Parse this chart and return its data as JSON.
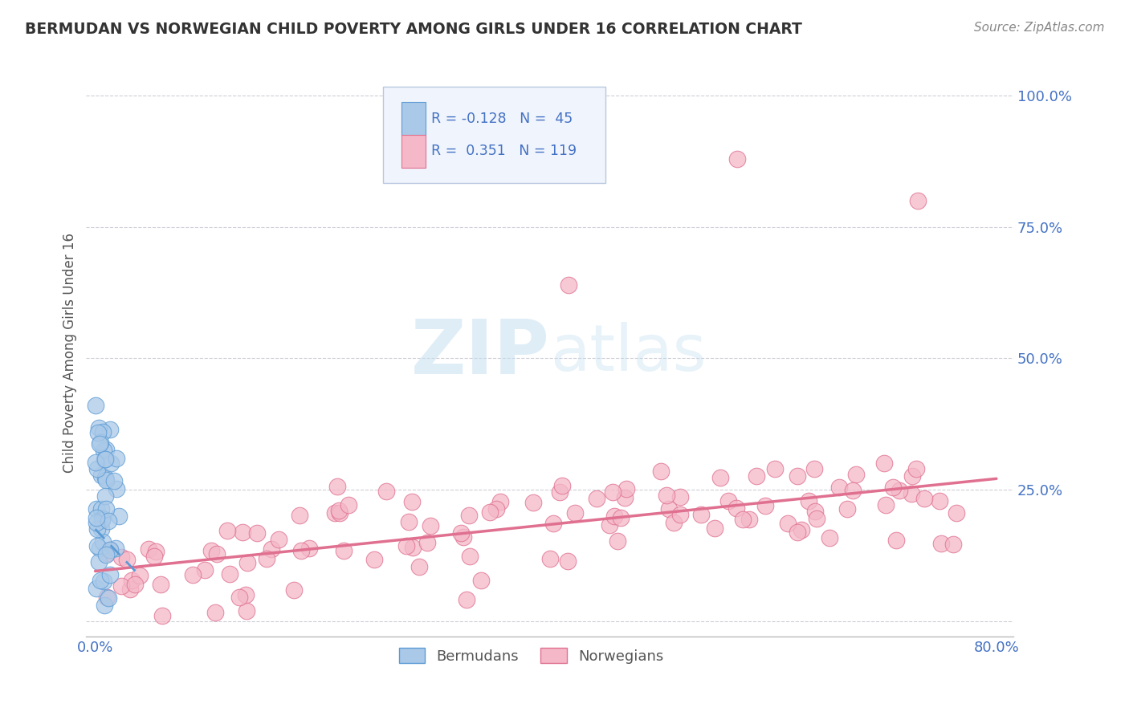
{
  "title": "BERMUDAN VS NORWEGIAN CHILD POVERTY AMONG GIRLS UNDER 16 CORRELATION CHART",
  "source": "Source: ZipAtlas.com",
  "ylabel": "Child Poverty Among Girls Under 16",
  "bermudans_R": -0.128,
  "bermudans_N": 45,
  "norwegians_R": 0.351,
  "norwegians_N": 119,
  "bermudans_color": "#aac9e8",
  "bermudans_edge": "#5b9bd5",
  "norwegians_color": "#f4b8c8",
  "norwegians_edge": "#e07090",
  "trend_blue": "#5b9bd5",
  "trend_pink": "#e07090",
  "background": "#ffffff",
  "tick_color": "#4472c4",
  "grid_color": "#c8c8d4",
  "legend_box_color": "#e8eef8",
  "legend_box_edge": "#b0b8cc"
}
